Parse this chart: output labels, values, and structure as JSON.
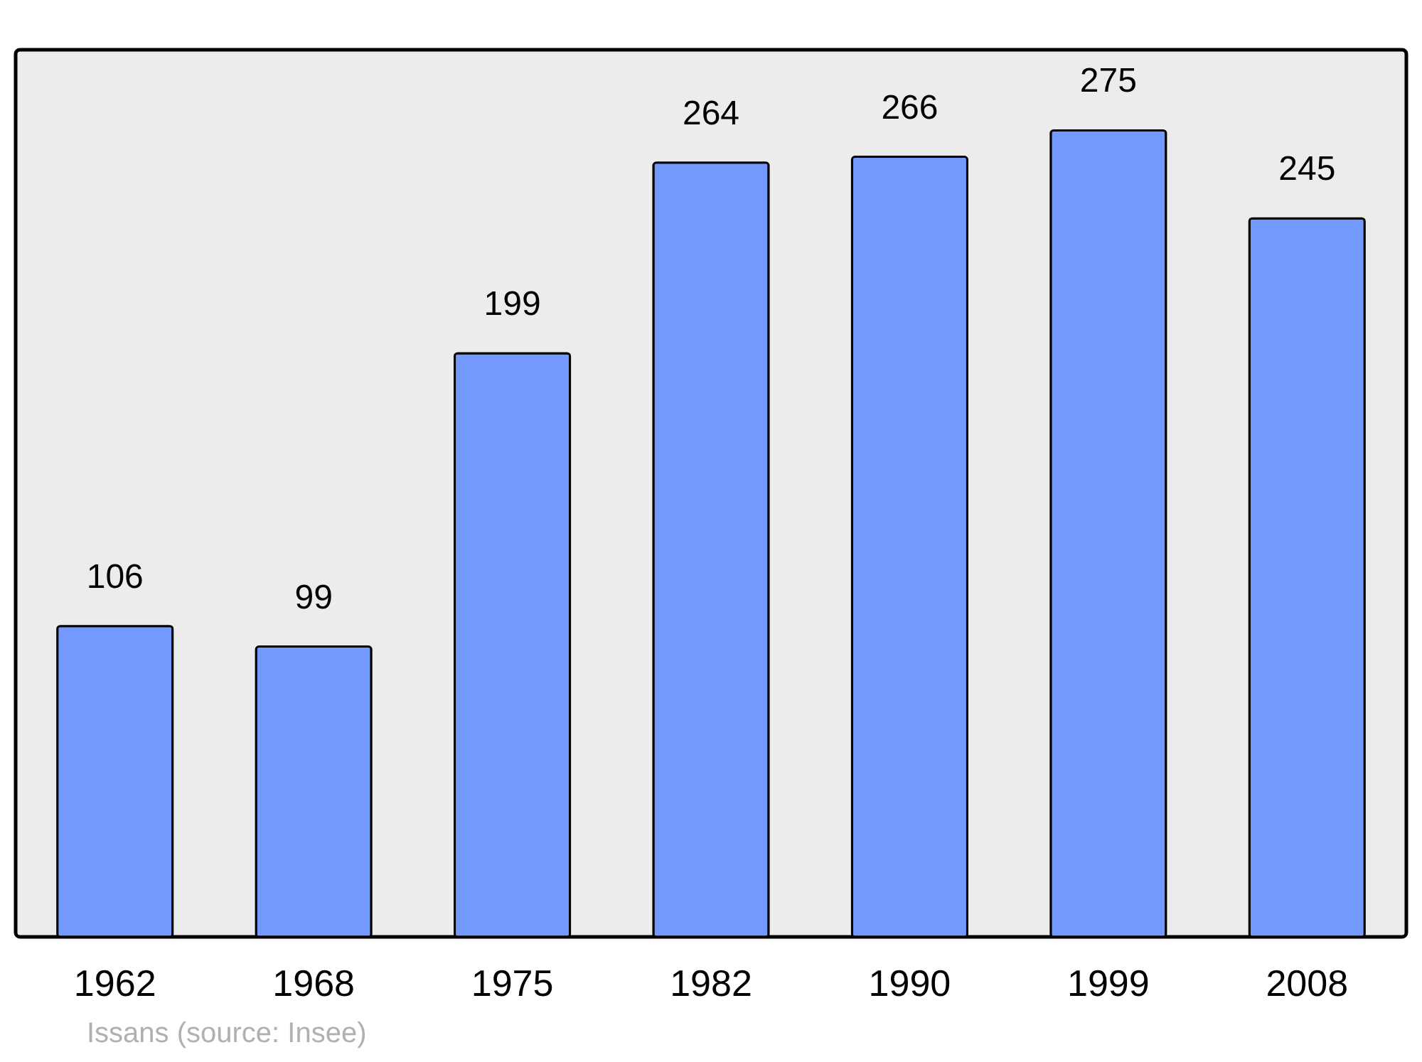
{
  "chart_data": {
    "type": "bar",
    "categories": [
      "1962",
      "1968",
      "1975",
      "1982",
      "1990",
      "1999",
      "2008"
    ],
    "values": [
      106,
      99,
      199,
      264,
      266,
      275,
      245
    ],
    "color": "#7399ff",
    "data_labels": true,
    "grid": false,
    "annotations": [
      "Issans    (source: Insee)"
    ]
  }
}
